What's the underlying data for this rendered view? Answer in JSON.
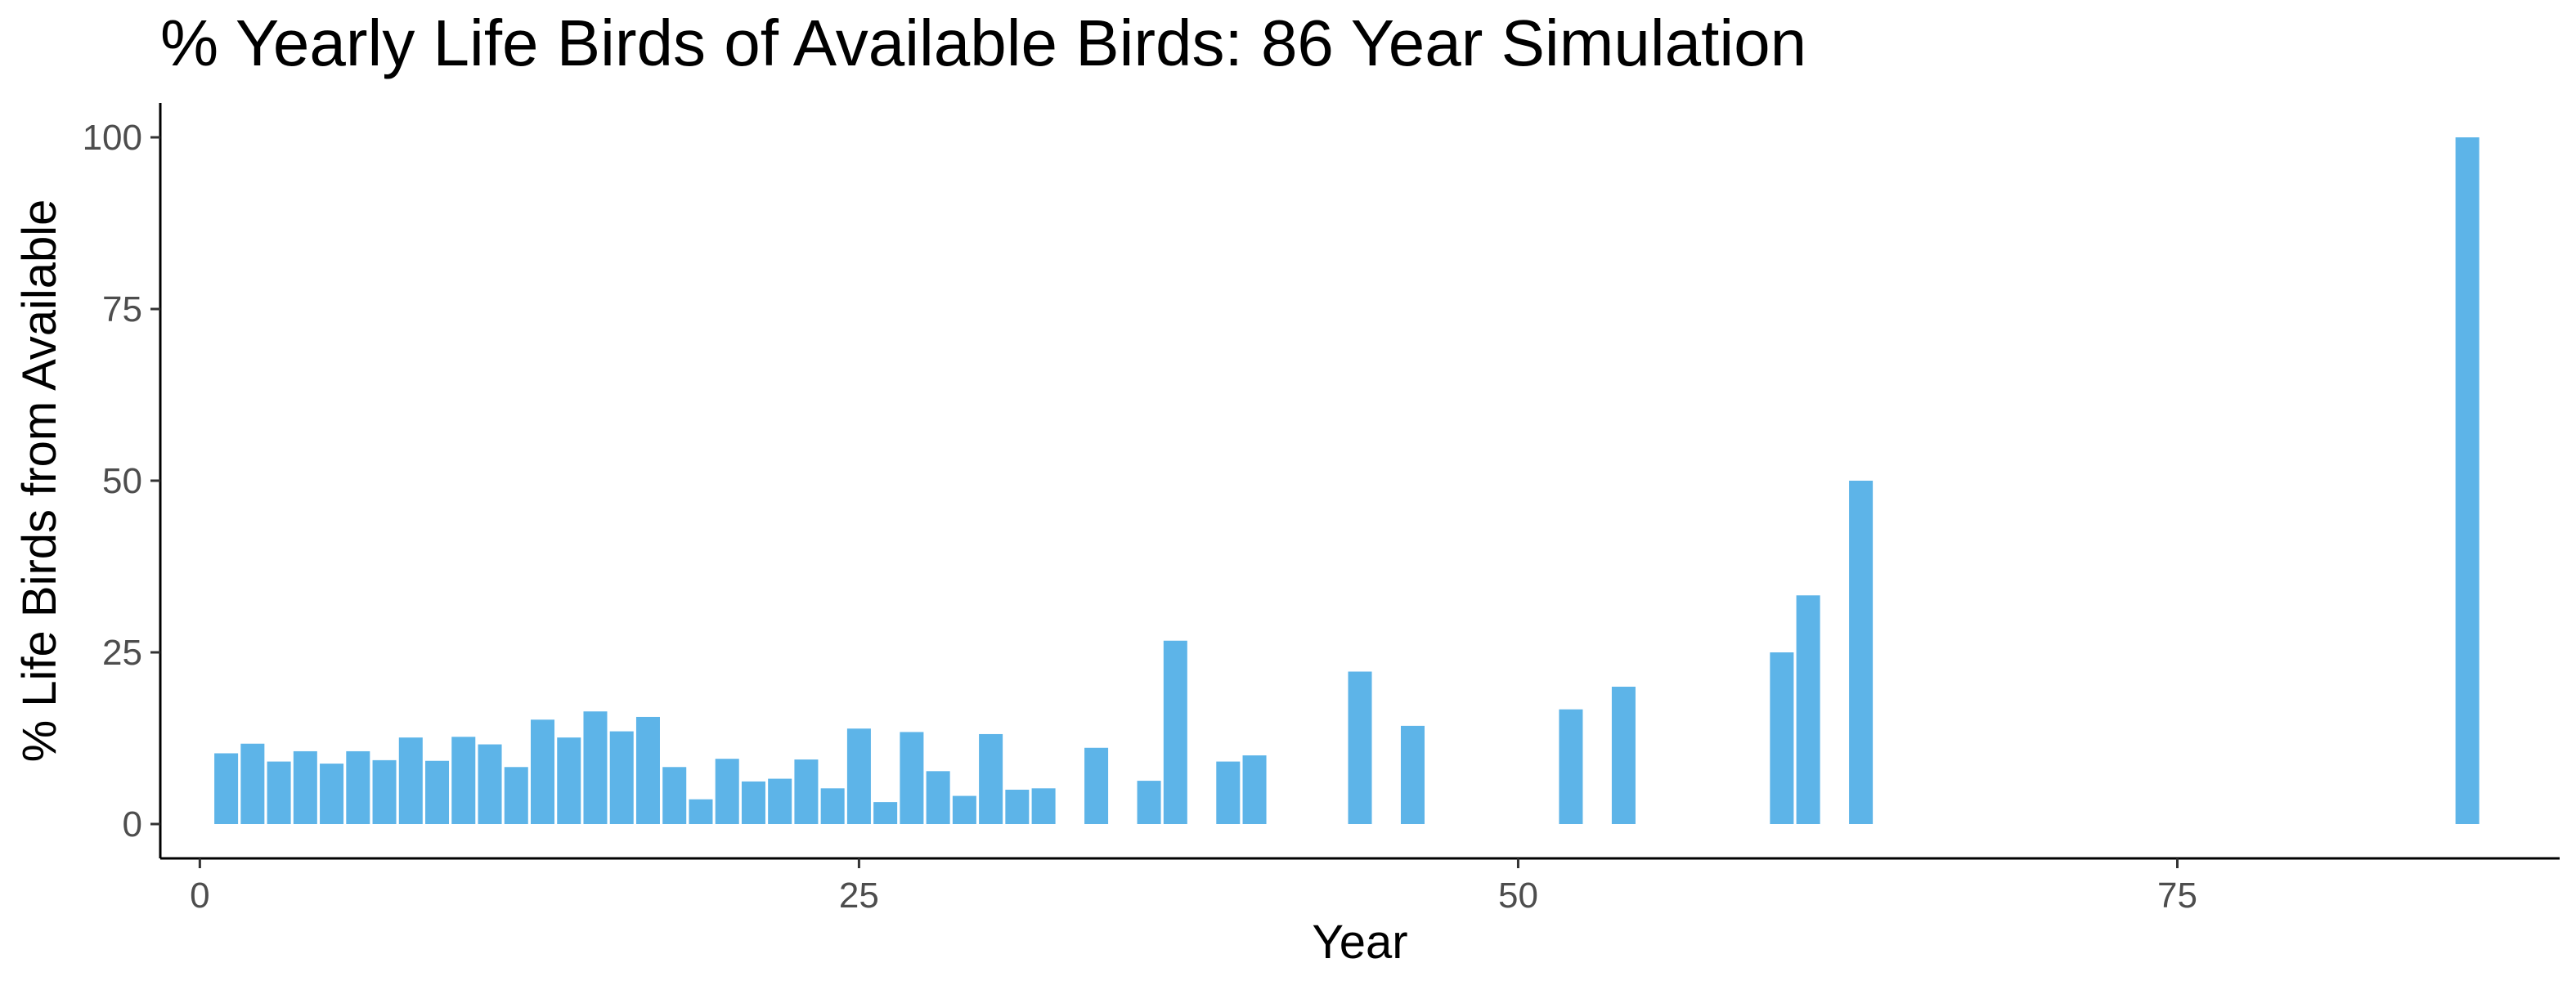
{
  "chart_data": {
    "type": "bar",
    "title": "% Yearly Life Birds of Available Birds: 86 Year Simulation",
    "xlabel": "Year",
    "ylabel": "% Life Birds from Available",
    "xlim": [
      -1.5,
      89.5
    ],
    "ylim": [
      -5,
      105
    ],
    "x_ticks": [
      0,
      25,
      50,
      75
    ],
    "y_ticks": [
      0,
      25,
      50,
      75,
      100
    ],
    "grid": false,
    "legend": "none",
    "bar_color": "#5db4e8",
    "x": [
      1,
      2,
      3,
      4,
      5,
      6,
      7,
      8,
      9,
      10,
      11,
      12,
      13,
      14,
      15,
      16,
      17,
      18,
      19,
      20,
      21,
      22,
      23,
      24,
      25,
      26,
      27,
      28,
      29,
      30,
      31,
      32,
      34,
      36,
      37,
      39,
      40,
      44,
      46,
      52,
      54,
      60,
      61,
      63,
      86
    ],
    "values": [
      10.3,
      11.7,
      9.1,
      10.6,
      8.8,
      10.6,
      9.3,
      12.6,
      9.2,
      12.7,
      11.6,
      8.3,
      15.2,
      12.6,
      16.4,
      13.5,
      15.6,
      8.3,
      3.6,
      9.5,
      6.2,
      6.6,
      9.4,
      5.2,
      13.9,
      3.2,
      13.4,
      7.7,
      4.1,
      13.1,
      5.0,
      5.2,
      11.1,
      6.3,
      26.7,
      9.1,
      10.0,
      22.2,
      14.3,
      16.7,
      20.0,
      25.0,
      33.3,
      50.0,
      100.0
    ]
  }
}
